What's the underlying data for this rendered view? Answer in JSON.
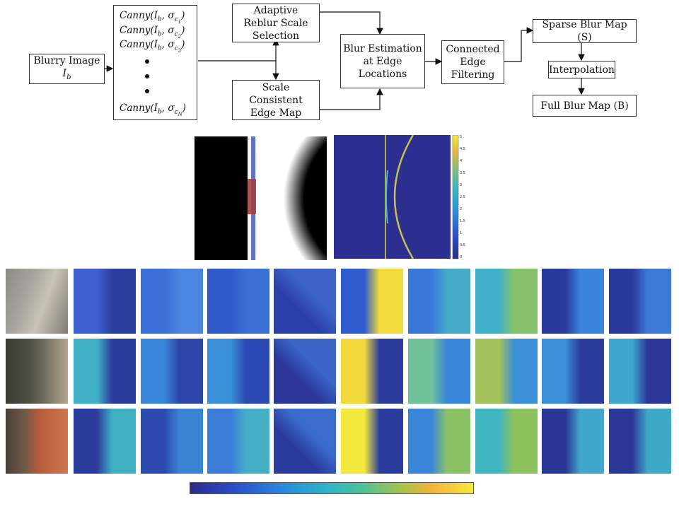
{
  "flowchart": {
    "blurry_image": {
      "line1": "Blurry Image",
      "line2": "I",
      "sub": "b"
    },
    "canny_lines": [
      {
        "fn": "Canny(",
        "I": "I",
        "isub": "b",
        "sigma": "σ",
        "ssub": "c",
        "sssub": "1",
        "close": ")"
      },
      {
        "fn": "Canny(",
        "I": "I",
        "isub": "b",
        "sigma": "σ",
        "ssub": "c",
        "sssub": "2",
        "close": ")"
      },
      {
        "fn": "Canny(",
        "I": "I",
        "isub": "b",
        "sigma": "σ",
        "ssub": "c",
        "sssub": "3",
        "close": ")"
      },
      {
        "fn": "Canny(",
        "I": "I",
        "isub": "b",
        "sigma": "σ",
        "ssub": "c",
        "sssub": "N",
        "close": ")"
      }
    ],
    "adaptive": "Adaptive\nReblur Scale\nSelection",
    "scale_consistent": "Scale\nConsistent\nEdge Map",
    "blur_estimation": "Blur Estimation\nat Edge\nLocations",
    "connected_edge": "Connected\nEdge\nFiltering",
    "sparse_blur": "Sparse Blur Map (S)",
    "interpolation": "Interpolation",
    "full_blur": "Full Blur Map (B)"
  },
  "example_colorbar_ticks": [
    "5",
    "4.5",
    "4",
    "3.5",
    "3",
    "2.5",
    "2",
    "1.5",
    "1",
    "0.5",
    "0"
  ],
  "grid": {
    "rows": [
      {
        "photo": "ivy-on-stone-photo",
        "maps": [
          {
            "a": "#3d5fd0",
            "b": "#2d3f9e",
            "dir": "90deg"
          },
          {
            "a": "#3a6fd8",
            "b": "#4a86e0",
            "dir": "90deg"
          },
          {
            "a": "#2f58c8",
            "b": "#3b6fd6",
            "dir": "90deg"
          },
          {
            "a": "#2a3fa8",
            "b": "#3d63c8",
            "dir": "45deg"
          },
          {
            "a": "#2f5ccf",
            "b": "#f1dc3c",
            "dir": "90deg"
          },
          {
            "a": "#3a78d8",
            "b": "#46a9c8",
            "dir": "90deg"
          },
          {
            "a": "#3fb2c9",
            "b": "#86c26a",
            "dir": "90deg"
          },
          {
            "a": "#2a3a9c",
            "b": "#3a84dc",
            "dir": "90deg"
          },
          {
            "a": "#2a3a9c",
            "b": "#3d7ad6",
            "dir": "90deg"
          }
        ]
      },
      {
        "photo": "tree-bark-photo",
        "maps": [
          {
            "a": "#3fb0c6",
            "b": "#2c3c9c",
            "dir": "90deg"
          },
          {
            "a": "#3a86da",
            "b": "#2d45a8",
            "dir": "90deg"
          },
          {
            "a": "#3a90d8",
            "b": "#2c4ab4",
            "dir": "90deg"
          },
          {
            "a": "#2a3698",
            "b": "#3a64c6",
            "dir": "45deg"
          },
          {
            "a": "#f1d83c",
            "b": "#2c3c9c",
            "dir": "90deg"
          },
          {
            "a": "#6fc29a",
            "b": "#3a86d8",
            "dir": "90deg"
          },
          {
            "a": "#a6c25a",
            "b": "#3b8fd6",
            "dir": "90deg"
          },
          {
            "a": "#3b8ed8",
            "b": "#2c3c9c",
            "dir": "90deg"
          },
          {
            "a": "#3ea6cf",
            "b": "#2b3696",
            "dir": "90deg"
          }
        ]
      },
      {
        "photo": "brick-wall-photo",
        "maps": [
          {
            "a": "#2c3c9c",
            "b": "#3fb0c2",
            "dir": "90deg"
          },
          {
            "a": "#2c4aae",
            "b": "#3a84d6",
            "dir": "90deg"
          },
          {
            "a": "#3a7cd6",
            "b": "#46aec6",
            "dir": "90deg"
          },
          {
            "a": "#2a3c9e",
            "b": "#3b6ccc",
            "dir": "45deg"
          },
          {
            "a": "#f2e83e",
            "b": "#2c3c9c",
            "dir": "90deg"
          },
          {
            "a": "#3a86d8",
            "b": "#8cc266",
            "dir": "90deg"
          },
          {
            "a": "#3fb6c2",
            "b": "#8ec25c",
            "dir": "90deg"
          },
          {
            "a": "#2a3696",
            "b": "#3fa8cc",
            "dir": "90deg"
          },
          {
            "a": "#2b3898",
            "b": "#3faac8",
            "dir": "90deg"
          }
        ]
      }
    ]
  },
  "bottom_colorbar": {
    "label_visible": false
  }
}
